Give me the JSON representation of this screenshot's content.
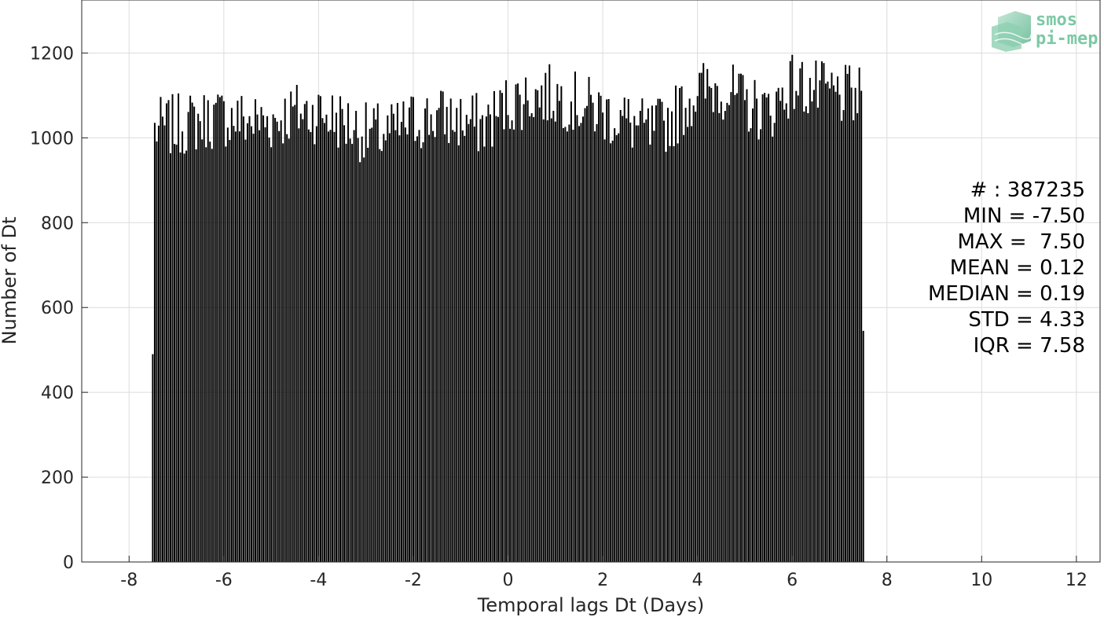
{
  "chart_data": {
    "type": "bar",
    "title": "",
    "xlabel": "Temporal lags Dt (Days)",
    "ylabel": "Number of Dt",
    "xlim": [
      -9,
      12.5
    ],
    "ylim": [
      0,
      1325
    ],
    "xticks": [
      -8,
      -6,
      -4,
      -2,
      0,
      2,
      4,
      6,
      8,
      10,
      12
    ],
    "xtick_labels": [
      "-8",
      "-6",
      "-4",
      "-2",
      "0",
      "2",
      "4",
      "6",
      "8",
      "10",
      "12"
    ],
    "yticks": [
      0,
      200,
      400,
      600,
      800,
      1000,
      1200
    ],
    "ytick_labels": [
      "0",
      "200",
      "400",
      "600",
      "800",
      "1000",
      "1200"
    ],
    "grid": true,
    "bar_color": "#000000",
    "bin_width": 0.04167,
    "x_start": -7.5,
    "x_end": 7.5,
    "first_bin_value": 490,
    "last_bin_value": 545,
    "profile": {
      "x": [
        -7.5,
        -7.0,
        -6.5,
        -6.0,
        -5.5,
        -5.0,
        -4.5,
        -4.0,
        -3.5,
        -3.0,
        -2.5,
        -2.0,
        -1.5,
        -1.0,
        -0.5,
        0.0,
        0.5,
        1.0,
        1.5,
        2.0,
        2.5,
        3.0,
        3.5,
        4.0,
        4.5,
        5.0,
        5.5,
        6.0,
        6.5,
        7.0,
        7.5
      ],
      "values": [
        1020,
        1030,
        1040,
        1050,
        1040,
        1040,
        1060,
        1060,
        1040,
        1010,
        1010,
        1040,
        1050,
        1040,
        1030,
        1080,
        1100,
        1100,
        1080,
        1060,
        1040,
        1010,
        1050,
        1110,
        1120,
        1080,
        1060,
        1130,
        1110,
        1100,
        1090
      ]
    },
    "annotations": [
      "# : 387235",
      "MIN = -7.50",
      "MAX =  7.50",
      "MEAN = 0.12",
      "MEDIAN = 0.19",
      "STD = 4.33",
      "IQR = 7.58"
    ]
  },
  "logo": {
    "line1": "smos",
    "line2": "pi-mep",
    "color": "#7cc9a6"
  }
}
